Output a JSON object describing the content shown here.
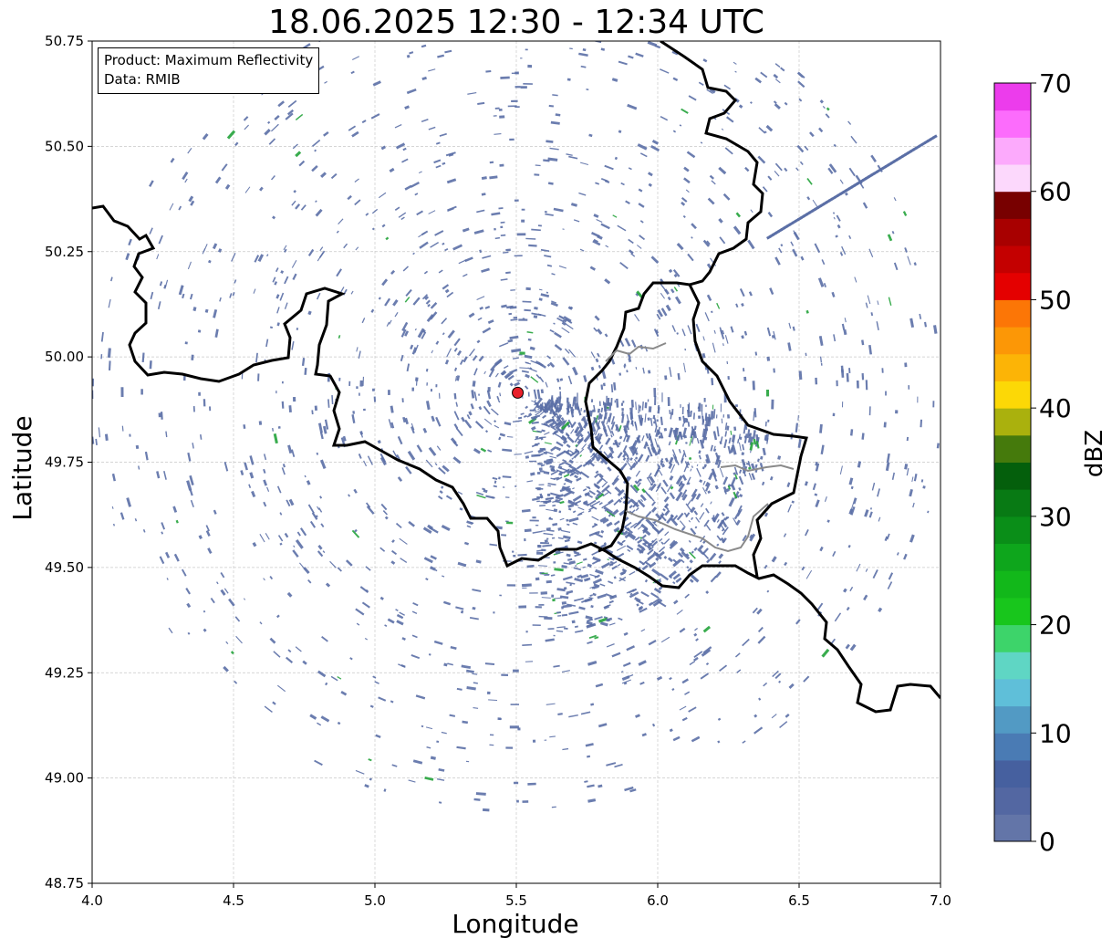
{
  "title": "18.06.2025 12:30 - 12:34 UTC",
  "info": {
    "product": "Product: Maximum Reflectivity",
    "data": "Data: RMIB"
  },
  "axes": {
    "xlabel": "Longitude",
    "ylabel": "Latitude",
    "xticks": [
      "4.0",
      "4.5",
      "5.0",
      "5.5",
      "6.0",
      "6.5",
      "7.0"
    ],
    "yticks": [
      "50.75",
      "50.50",
      "50.25",
      "50.00",
      "49.75",
      "49.50",
      "49.25",
      "49.00",
      "48.75"
    ],
    "xlim": [
      4.0,
      7.0
    ],
    "ylim": [
      48.75,
      50.75
    ],
    "grid": true
  },
  "radar_site": {
    "lon": 5.505,
    "lat": 49.915,
    "marker_color": "#e8202a"
  },
  "colorbar": {
    "label": "dBZ",
    "ticks": [
      "0",
      "10",
      "20",
      "30",
      "40",
      "50",
      "60",
      "70"
    ],
    "range": [
      0,
      70
    ],
    "colors": [
      "#6375a8",
      "#5367a2",
      "#46609f",
      "#4a7bb4",
      "#529ac4",
      "#5fbfd9",
      "#5fd6c4",
      "#3dd46a",
      "#18c61c",
      "#12b81a",
      "#0ea61c",
      "#0a8e18",
      "#087a14",
      "#045f0c",
      "#457a0c",
      "#aab10d",
      "#fcd806",
      "#fcb406",
      "#fc9706",
      "#fc7606",
      "#e40000",
      "#c40000",
      "#a80000",
      "#780000",
      "#fcd8fc",
      "#fcaafc",
      "#fc6cfc",
      "#ec3cec"
    ]
  },
  "colors": {
    "echo_low": "#5b6fa6",
    "echo_green": "#23a33b",
    "border": "#000000",
    "sub_border": "#8a8a8a"
  }
}
